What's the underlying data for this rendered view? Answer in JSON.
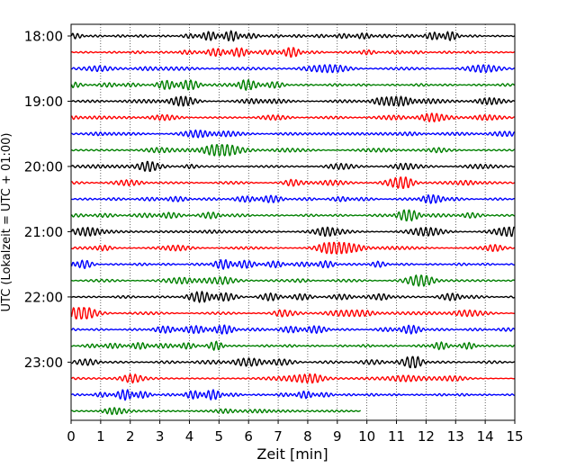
{
  "chart_data": {
    "type": "line",
    "chart_kind": "helicorder (seismogram drum plot)",
    "xlabel": "Zeit  [min]",
    "ylabel": "UTC (Lokalzeit = UTC + 01:00)",
    "xlim": [
      0,
      15
    ],
    "x_ticks": [
      0,
      1,
      2,
      3,
      4,
      5,
      6,
      7,
      8,
      9,
      10,
      11,
      12,
      13,
      14,
      15
    ],
    "x_tick_labels": [
      "0",
      "1",
      "2",
      "3",
      "4",
      "5",
      "6",
      "7",
      "8",
      "9",
      "10",
      "11",
      "12",
      "13",
      "14",
      "15"
    ],
    "y_tick_labels": [
      "18:00",
      "19:00",
      "20:00",
      "21:00",
      "22:00",
      "23:00"
    ],
    "minutes_per_trace": 15,
    "trace_colors": [
      "#000000",
      "#ff0000",
      "#0000ff",
      "#008000"
    ],
    "grid": "vertical dotted lines at each minute",
    "traces": [
      {
        "start": "18:00",
        "end_min": 15
      },
      {
        "start": "18:15",
        "end_min": 15
      },
      {
        "start": "18:30",
        "end_min": 15
      },
      {
        "start": "18:45",
        "end_min": 15
      },
      {
        "start": "19:00",
        "end_min": 15
      },
      {
        "start": "19:15",
        "end_min": 15
      },
      {
        "start": "19:30",
        "end_min": 15
      },
      {
        "start": "19:45",
        "end_min": 15
      },
      {
        "start": "20:00",
        "end_min": 15
      },
      {
        "start": "20:15",
        "end_min": 15
      },
      {
        "start": "20:30",
        "end_min": 15
      },
      {
        "start": "20:45",
        "end_min": 15
      },
      {
        "start": "21:00",
        "end_min": 15
      },
      {
        "start": "21:15",
        "end_min": 15
      },
      {
        "start": "21:30",
        "end_min": 15
      },
      {
        "start": "21:45",
        "end_min": 15
      },
      {
        "start": "22:00",
        "end_min": 15
      },
      {
        "start": "22:15",
        "end_min": 15
      },
      {
        "start": "22:30",
        "end_min": 15
      },
      {
        "start": "22:45",
        "end_min": 15
      },
      {
        "start": "23:00",
        "end_min": 15
      },
      {
        "start": "23:15",
        "end_min": 15
      },
      {
        "start": "23:30",
        "end_min": 15
      },
      {
        "start": "23:45",
        "end_min": 9.8
      }
    ]
  }
}
